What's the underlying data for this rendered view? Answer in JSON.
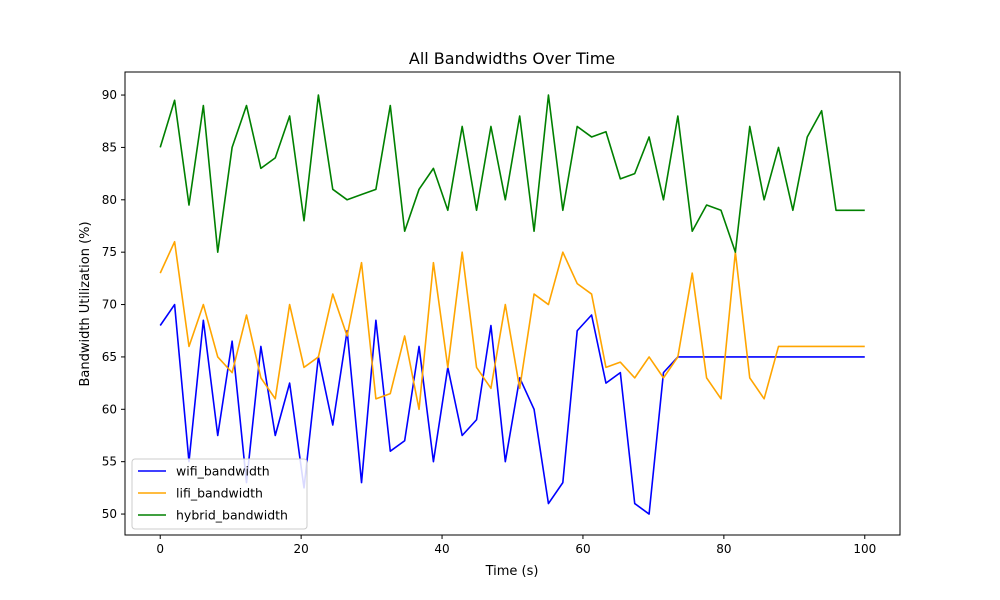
{
  "chart_data": {
    "type": "line",
    "title": "All Bandwidths Over Time",
    "xlabel": "Time (s)",
    "ylabel": "Bandwidth Utilization (%)",
    "xlim": [
      -5,
      105
    ],
    "ylim": [
      48.0,
      92.2
    ],
    "xticks": [
      0,
      20,
      40,
      60,
      80,
      100
    ],
    "yticks": [
      50,
      55,
      60,
      65,
      70,
      75,
      80,
      85,
      90
    ],
    "grid": false,
    "legend_position": "lower-left",
    "x": [
      0,
      2.0408,
      4.0816,
      6.1224,
      8.1633,
      10.2041,
      12.2449,
      14.2857,
      16.3265,
      18.3673,
      20.4082,
      22.449,
      24.4898,
      26.5306,
      28.5714,
      30.6122,
      32.6531,
      34.6939,
      36.7347,
      38.7755,
      40.8163,
      42.8571,
      44.898,
      46.9388,
      48.9796,
      51.0204,
      53.0612,
      55.102,
      57.1429,
      59.1837,
      61.2245,
      63.2653,
      65.3061,
      67.3469,
      69.3878,
      71.4286,
      73.4694,
      75.5102,
      77.551,
      79.5918,
      81.6327,
      83.6735,
      85.7143,
      87.7551,
      89.7959,
      91.8367,
      93.8776,
      95.9184,
      97.9592,
      100
    ],
    "series": [
      {
        "name": "wifi_bandwidth",
        "color": "#0000ff",
        "values": [
          68,
          70,
          55,
          68.5,
          57.5,
          66.5,
          53,
          66,
          57.5,
          62.5,
          52.5,
          65,
          58.5,
          67.5,
          53,
          68.5,
          56,
          57,
          66,
          55,
          64,
          57.5,
          59,
          68,
          55,
          63,
          60,
          51,
          53,
          67.5,
          69,
          62.5,
          63.5,
          51,
          50,
          63.5,
          65,
          65,
          65,
          65,
          65,
          65,
          65,
          65,
          65,
          65,
          65,
          65,
          65,
          65
        ]
      },
      {
        "name": "lifi_bandwidth",
        "color": "#ffa500",
        "values": [
          73,
          76,
          66,
          70,
          65,
          63.5,
          69,
          63,
          61,
          70,
          64,
          65,
          71,
          67,
          74,
          61,
          61.5,
          67,
          60,
          74,
          64,
          75,
          64,
          62,
          70,
          62,
          71,
          70,
          75,
          72,
          71,
          64,
          64.5,
          63,
          65,
          63,
          65,
          73,
          63,
          61,
          75,
          63,
          61,
          66,
          66,
          66,
          66,
          66,
          66,
          66
        ]
      },
      {
        "name": "hybrid_bandwidth",
        "color": "#008000",
        "values": [
          85,
          89.5,
          79.5,
          89,
          75,
          85,
          89,
          83,
          84,
          88,
          78,
          90,
          81,
          80,
          80.5,
          81,
          89,
          77,
          81,
          83,
          79,
          87,
          79,
          87,
          80,
          88,
          77,
          90,
          79,
          87,
          86,
          86.5,
          82,
          82.5,
          86,
          80,
          88,
          77,
          79.5,
          79,
          75,
          87,
          80,
          85,
          79,
          86,
          88.5,
          79,
          79,
          79
        ]
      }
    ]
  }
}
